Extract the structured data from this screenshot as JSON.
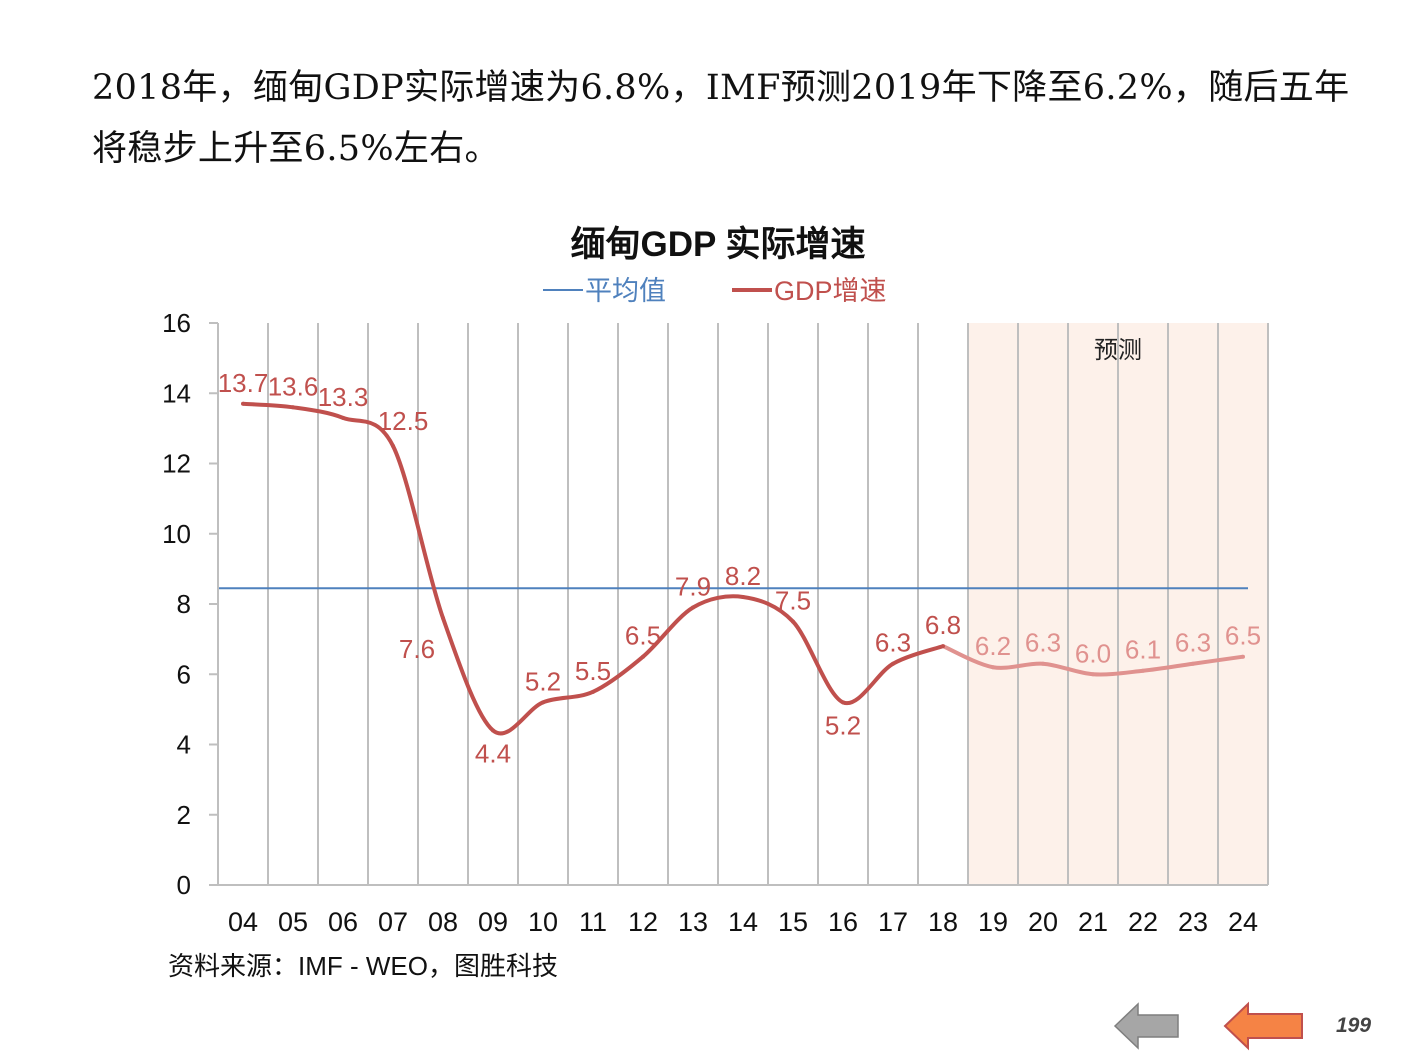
{
  "intro_text": "2018年，缅甸GDP实际增速为6.8%，IMF预测2019年下降至6.2%，随后五年将稳步上升至6.5%左右。",
  "source_text": "资料来源：IMF - WEO，图胜科技",
  "page_number": "199",
  "nav": {
    "back_icon": "gray-left-arrow-icon",
    "next_icon": "orange-left-arrow-icon"
  },
  "colors": {
    "gdp_line": "#C0504D",
    "forecast_line": "#E0928F",
    "average_line": "#4F81BD",
    "forecast_bg": "#FDF1EA",
    "grid": "#BFBFBF",
    "text": "#111111",
    "back_arrow": "#A6A6A6",
    "next_arrow": "#F58345"
  },
  "chart_data": {
    "type": "line",
    "title": "缅甸GDP 实际增速",
    "xlabel": "",
    "ylabel": "",
    "ylim": [
      0,
      16
    ],
    "yticks": [
      "0",
      "2",
      "4",
      "6",
      "8",
      "10",
      "12",
      "14",
      "16"
    ],
    "categories": [
      "04",
      "05",
      "06",
      "07",
      "08",
      "09",
      "10",
      "11",
      "12",
      "13",
      "14",
      "15",
      "16",
      "17",
      "18",
      "19",
      "20",
      "21",
      "22",
      "23",
      "24"
    ],
    "legend": [
      {
        "name": "平均值",
        "color": "#4F81BD"
      },
      {
        "name": "GDP增速",
        "color": "#C0504D"
      }
    ],
    "legend_position": "top-center",
    "forecast_region": {
      "start": "19",
      "end": "24",
      "label": "预测"
    },
    "series": [
      {
        "name": "GDP增速",
        "values": [
          13.7,
          13.6,
          13.3,
          12.5,
          7.6,
          4.4,
          5.2,
          5.5,
          6.5,
          7.9,
          8.2,
          7.5,
          5.2,
          6.3,
          6.8,
          6.2,
          6.3,
          6.0,
          6.1,
          6.3,
          6.5
        ],
        "labels": [
          "13.7",
          "13.6",
          "13.3",
          "12.5",
          "7.6",
          "4.4",
          "5.2",
          "5.5",
          "6.5",
          "7.9",
          "8.2",
          "7.5",
          "5.2",
          "6.3",
          "6.8",
          "6.2",
          "6.3",
          "6.0",
          "6.1",
          "6.3",
          "6.5"
        ],
        "label_positions": [
          "above",
          "above",
          "above",
          "right",
          "below-left",
          "below",
          "above",
          "above",
          "above",
          "above",
          "above",
          "above",
          "below",
          "above",
          "above",
          "above",
          "above",
          "above",
          "above",
          "above",
          "above"
        ]
      },
      {
        "name": "平均值",
        "value": 8.45
      }
    ]
  }
}
